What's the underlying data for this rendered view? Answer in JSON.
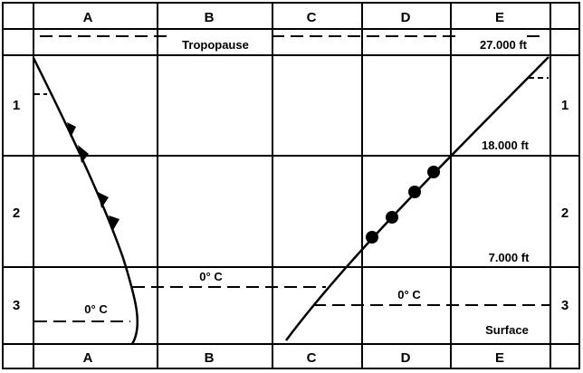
{
  "columns": [
    "A",
    "B",
    "C",
    "D",
    "E"
  ],
  "rows": [
    "1",
    "2",
    "3"
  ],
  "labels": {
    "tropopause": "Tropopause",
    "alt_top": "27.000 ft",
    "alt_mid": "18.000 ft",
    "alt_low": "7.000 ft",
    "freeze_center": "0° C",
    "freeze_left": "0° C",
    "freeze_right": "0° C",
    "surface": "Surface"
  }
}
